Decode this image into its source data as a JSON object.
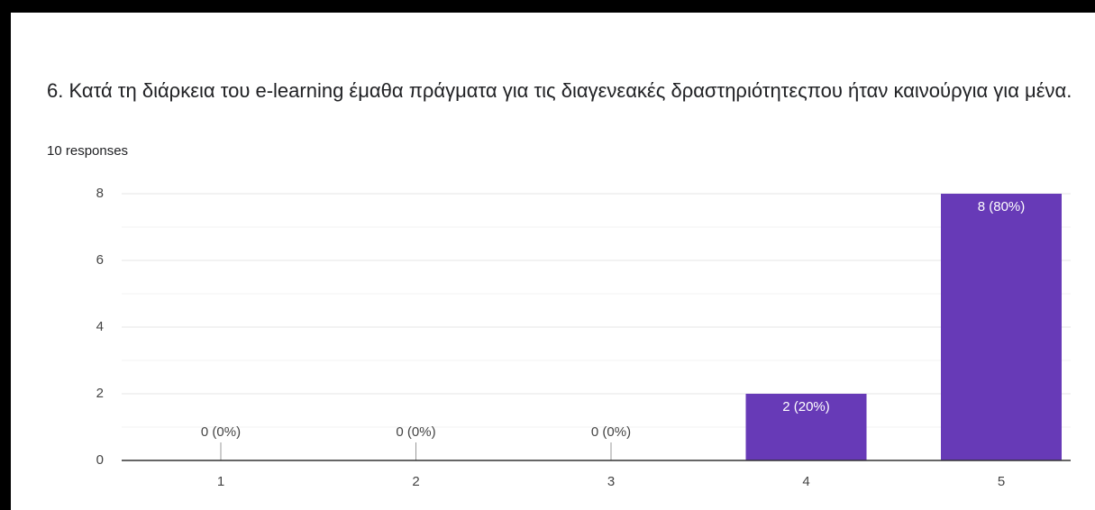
{
  "chart_data": {
    "type": "bar",
    "title": "6. Κατά τη διάρκεια του e-learning έμαθα πράγματα για τις διαγενεακές δραστηριότητεςπου ήταν καινούργια για μένα.",
    "subtitle": "10 responses",
    "categories": [
      "1",
      "2",
      "3",
      "4",
      "5"
    ],
    "values": [
      0,
      0,
      0,
      2,
      8
    ],
    "value_labels": [
      "0 (0%)",
      "0 (0%)",
      "0 (0%)",
      "2 (20%)",
      "8 (80%)"
    ],
    "color": "#673ab7",
    "ylim": [
      0,
      8
    ],
    "yticks": [
      0,
      2,
      4,
      6,
      8
    ],
    "minor_yticks": [
      1,
      3,
      5,
      7
    ],
    "grid": true
  }
}
